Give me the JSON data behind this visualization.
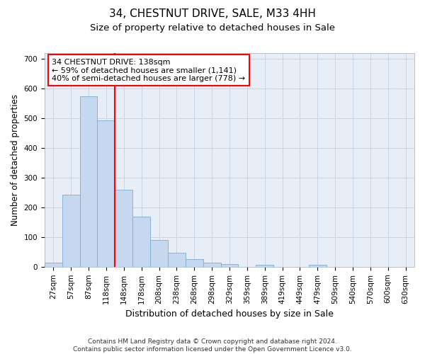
{
  "title": "34, CHESTNUT DRIVE, SALE, M33 4HH",
  "subtitle": "Size of property relative to detached houses in Sale",
  "xlabel": "Distribution of detached houses by size in Sale",
  "ylabel": "Number of detached properties",
  "footnote": "Contains HM Land Registry data © Crown copyright and database right 2024.\nContains public sector information licensed under the Open Government Licence v3.0.",
  "bar_labels": [
    "27sqm",
    "57sqm",
    "87sqm",
    "118sqm",
    "148sqm",
    "178sqm",
    "208sqm",
    "238sqm",
    "268sqm",
    "298sqm",
    "329sqm",
    "359sqm",
    "389sqm",
    "419sqm",
    "449sqm",
    "479sqm",
    "509sqm",
    "540sqm",
    "570sqm",
    "600sqm",
    "630sqm"
  ],
  "bar_values": [
    13,
    243,
    575,
    493,
    260,
    170,
    90,
    48,
    27,
    13,
    10,
    0,
    7,
    0,
    0,
    7,
    0,
    0,
    0,
    0,
    0
  ],
  "bar_color": "#c5d8f0",
  "bar_edge_color": "#7aadd4",
  "vline_color": "red",
  "vline_x_idx": 4,
  "annotation_text": "34 CHESTNUT DRIVE: 138sqm\n← 59% of detached houses are smaller (1,141)\n40% of semi-detached houses are larger (778) →",
  "ylim": [
    0,
    720
  ],
  "yticks": [
    0,
    100,
    200,
    300,
    400,
    500,
    600,
    700
  ],
  "title_fontsize": 11,
  "subtitle_fontsize": 9.5,
  "xlabel_fontsize": 9,
  "ylabel_fontsize": 8.5,
  "tick_fontsize": 7.5,
  "annotation_fontsize": 8,
  "footnote_fontsize": 6.5,
  "bg_color": "#e8eef8",
  "grid_color": "#c8d4e8"
}
